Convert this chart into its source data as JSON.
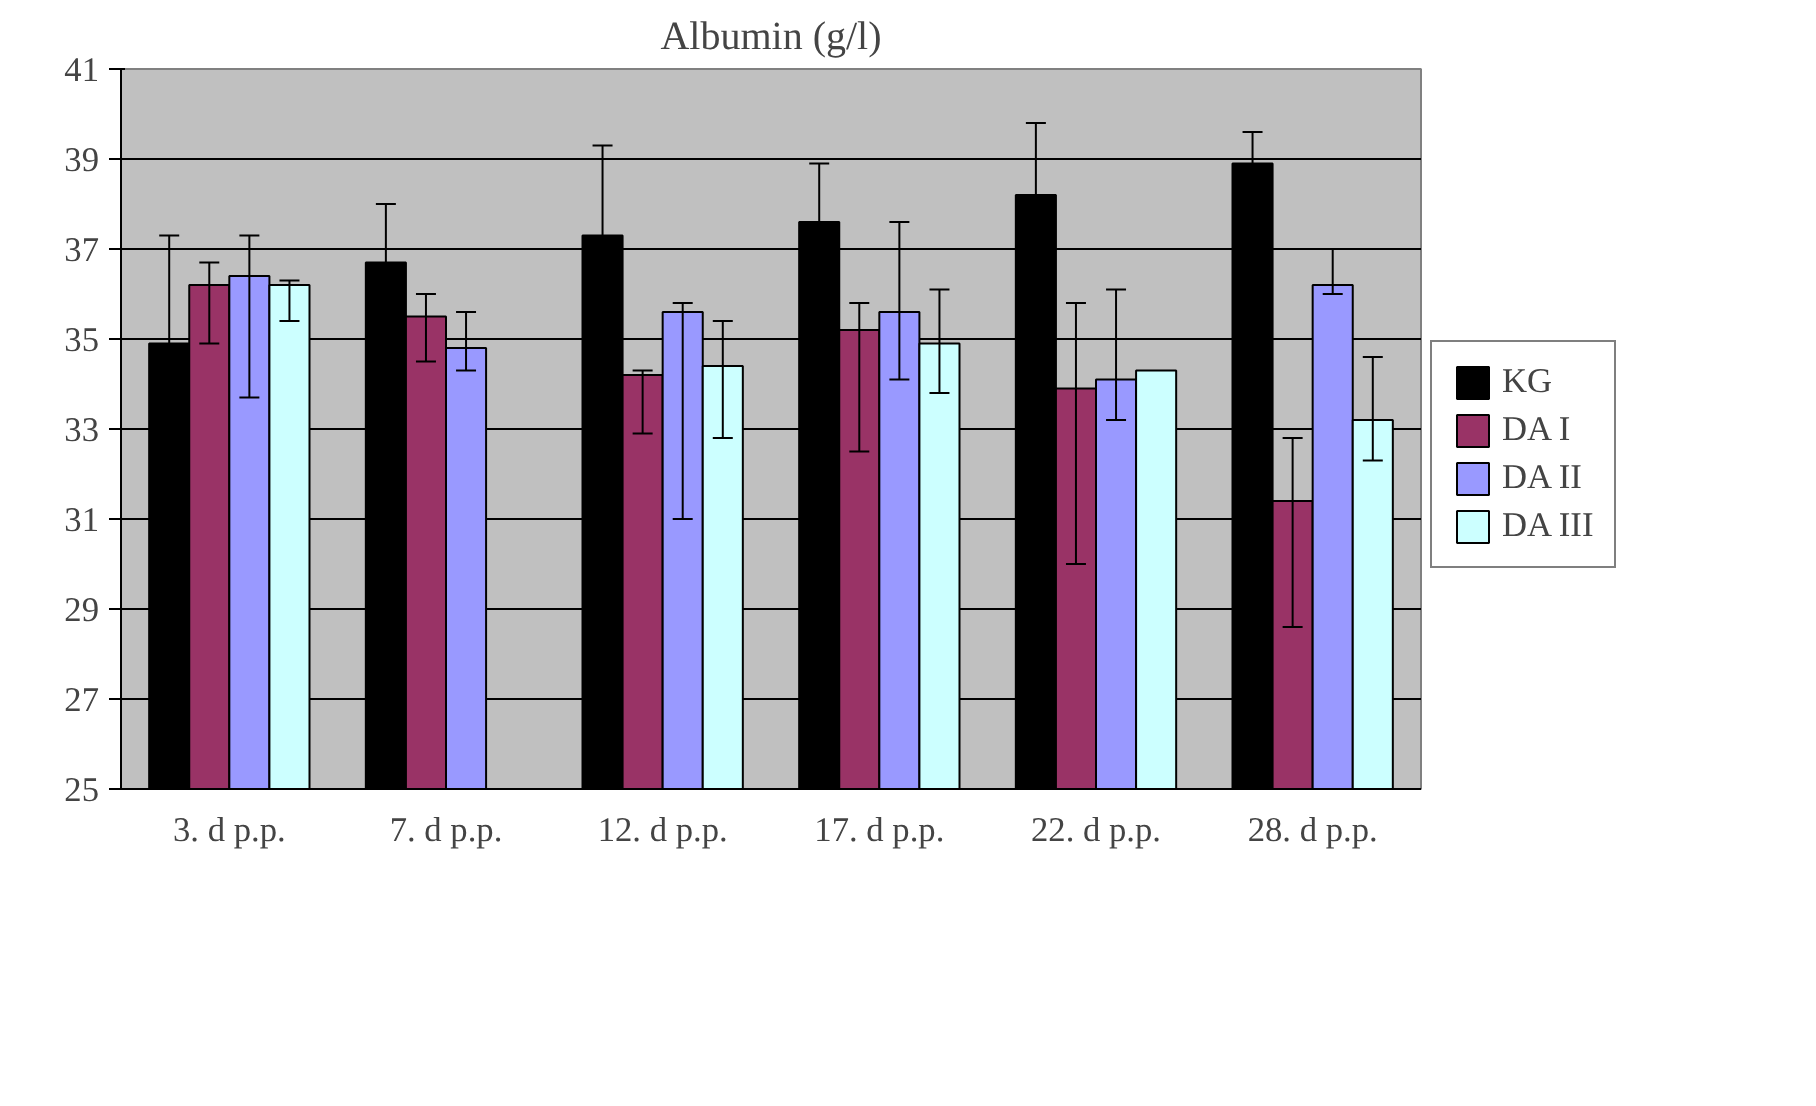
{
  "chart_data": {
    "type": "bar",
    "title": "Albumin (g/l)",
    "categories": [
      "3. d p.p.",
      "7. d p.p.",
      "12. d p.p.",
      "17. d p.p.",
      "22. d p.p.",
      "28. d p.p."
    ],
    "series": [
      {
        "name": "KG",
        "color": "#000000",
        "values": [
          34.9,
          36.7,
          37.3,
          37.6,
          38.2,
          38.9
        ],
        "errors": [
          2.4,
          1.3,
          2.0,
          1.3,
          1.6,
          0.7
        ]
      },
      {
        "name": "DA I",
        "color": "#993366",
        "values": [
          36.2,
          35.5,
          34.2,
          35.2,
          33.9,
          31.4
        ],
        "errors": [
          [
            34.9,
            36.7
          ],
          [
            34.5,
            36.0
          ],
          [
            32.9,
            34.3
          ],
          [
            32.5,
            35.8
          ],
          [
            30.0,
            35.8
          ],
          [
            28.6,
            32.8
          ]
        ]
      },
      {
        "name": "DA II",
        "color": "#9999ff",
        "values": [
          36.4,
          34.8,
          35.6,
          35.6,
          34.1,
          36.2
        ],
        "errors": [
          [
            33.7,
            37.3
          ],
          [
            34.3,
            35.6
          ],
          [
            31.0,
            35.8
          ],
          [
            34.1,
            37.6
          ],
          [
            33.2,
            36.1
          ],
          [
            36.0,
            37.0
          ]
        ]
      },
      {
        "name": "DA III",
        "color": "#ccffff",
        "values": [
          36.2,
          null,
          34.4,
          34.9,
          34.3,
          33.2
        ],
        "errors": [
          [
            35.4,
            36.3
          ],
          null,
          [
            32.8,
            35.4
          ],
          [
            33.8,
            36.1
          ],
          null,
          [
            32.3,
            34.6
          ]
        ]
      }
    ],
    "ylim": [
      25,
      41
    ],
    "yticks": [
      25,
      27,
      29,
      31,
      33,
      35,
      37,
      39,
      41
    ],
    "grid": "y",
    "legend": "right"
  }
}
